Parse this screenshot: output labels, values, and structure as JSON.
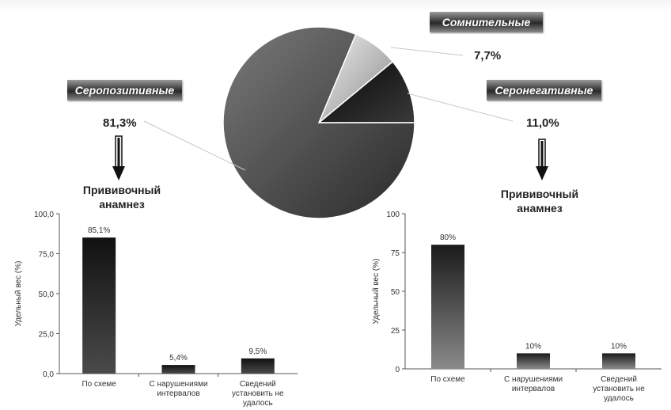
{
  "labels": {
    "seropositive": "Серопозитивные",
    "doubtful": "Сомнительные",
    "seronegative": "Серонегативные"
  },
  "percents": {
    "seropositive": "81,3%",
    "doubtful": "7,7%",
    "seronegative": "11,0%"
  },
  "anamnesis_heading": "Прививочный анамнез",
  "chart_data": [
    {
      "type": "pie",
      "slices": [
        {
          "name": "Серопозитивные",
          "value": 81.3,
          "color": "#555555"
        },
        {
          "name": "Сомнительные",
          "value": 7.7,
          "color": "#cccccc"
        },
        {
          "name": "Серонегативные",
          "value": 11.0,
          "color": "#151515"
        }
      ]
    },
    {
      "type": "bar",
      "categories": [
        [
          "По схеме"
        ],
        [
          "С нарушениями",
          "интервалов"
        ],
        [
          "Сведений",
          "установить не",
          "удалось"
        ]
      ],
      "values": [
        85.1,
        5.4,
        9.5
      ],
      "data_labels": [
        "85,1%",
        "5,4%",
        "9,5%"
      ],
      "ylabel": "Удельный вес (%)",
      "ylim": [
        0,
        100
      ],
      "yticks": [
        "0,0",
        "25,0",
        "50,0",
        "75,0",
        "100,0"
      ],
      "bar_color": "#222222"
    },
    {
      "type": "bar",
      "categories": [
        [
          "По схеме"
        ],
        [
          "С нарушениями",
          "интервалов"
        ],
        [
          "Сведений",
          "установить не",
          "удалось"
        ]
      ],
      "values": [
        80,
        10,
        10
      ],
      "data_labels": [
        "80%",
        "10%",
        "10%"
      ],
      "ylabel": "Удельный вес (%)",
      "ylim": [
        0,
        100
      ],
      "yticks": [
        "0",
        "25",
        "50",
        "75",
        "100"
      ],
      "bar_color": "#222222"
    }
  ]
}
